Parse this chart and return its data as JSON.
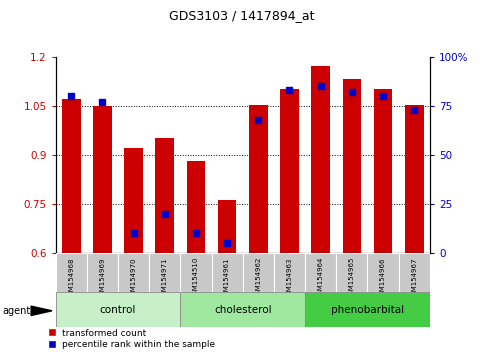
{
  "title": "GDS3103 / 1417894_at",
  "samples": [
    "GSM154968",
    "GSM154969",
    "GSM154970",
    "GSM154971",
    "GSM154510",
    "GSM154961",
    "GSM154962",
    "GSM154963",
    "GSM154964",
    "GSM154965",
    "GSM154966",
    "GSM154967"
  ],
  "transformed_count": [
    1.07,
    1.048,
    0.922,
    0.952,
    0.882,
    0.762,
    1.052,
    1.102,
    1.172,
    1.132,
    1.102,
    1.052
  ],
  "percentile_rank": [
    80,
    77,
    10,
    20,
    10,
    5,
    68,
    83,
    85,
    82,
    80,
    73
  ],
  "bar_color": "#cc0000",
  "dot_color": "#0000cc",
  "ymin": 0.6,
  "ymax": 1.2,
  "yticks": [
    0.6,
    0.75,
    0.9,
    1.05,
    1.2
  ],
  "ytick_labels": [
    "0.6",
    "0.75",
    "0.9",
    "1.05",
    "1.2"
  ],
  "y2min": 0,
  "y2max": 100,
  "y2ticks": [
    0,
    25,
    50,
    75,
    100
  ],
  "y2tick_labels": [
    "0",
    "25",
    "50",
    "75",
    "100%"
  ],
  "groups": [
    {
      "label": "control",
      "start": 0,
      "end": 3,
      "color": "#c8f0c8"
    },
    {
      "label": "cholesterol",
      "start": 4,
      "end": 7,
      "color": "#a0e8a0"
    },
    {
      "label": "phenobarbital",
      "start": 8,
      "end": 11,
      "color": "#44cc44"
    }
  ],
  "agent_label": "agent",
  "legend_red": "transformed count",
  "legend_blue": "percentile rank within the sample",
  "bg_color": "#ffffff",
  "plot_bg": "#ffffff",
  "grid_color": "#000000",
  "sample_bg": "#c8c8c8"
}
